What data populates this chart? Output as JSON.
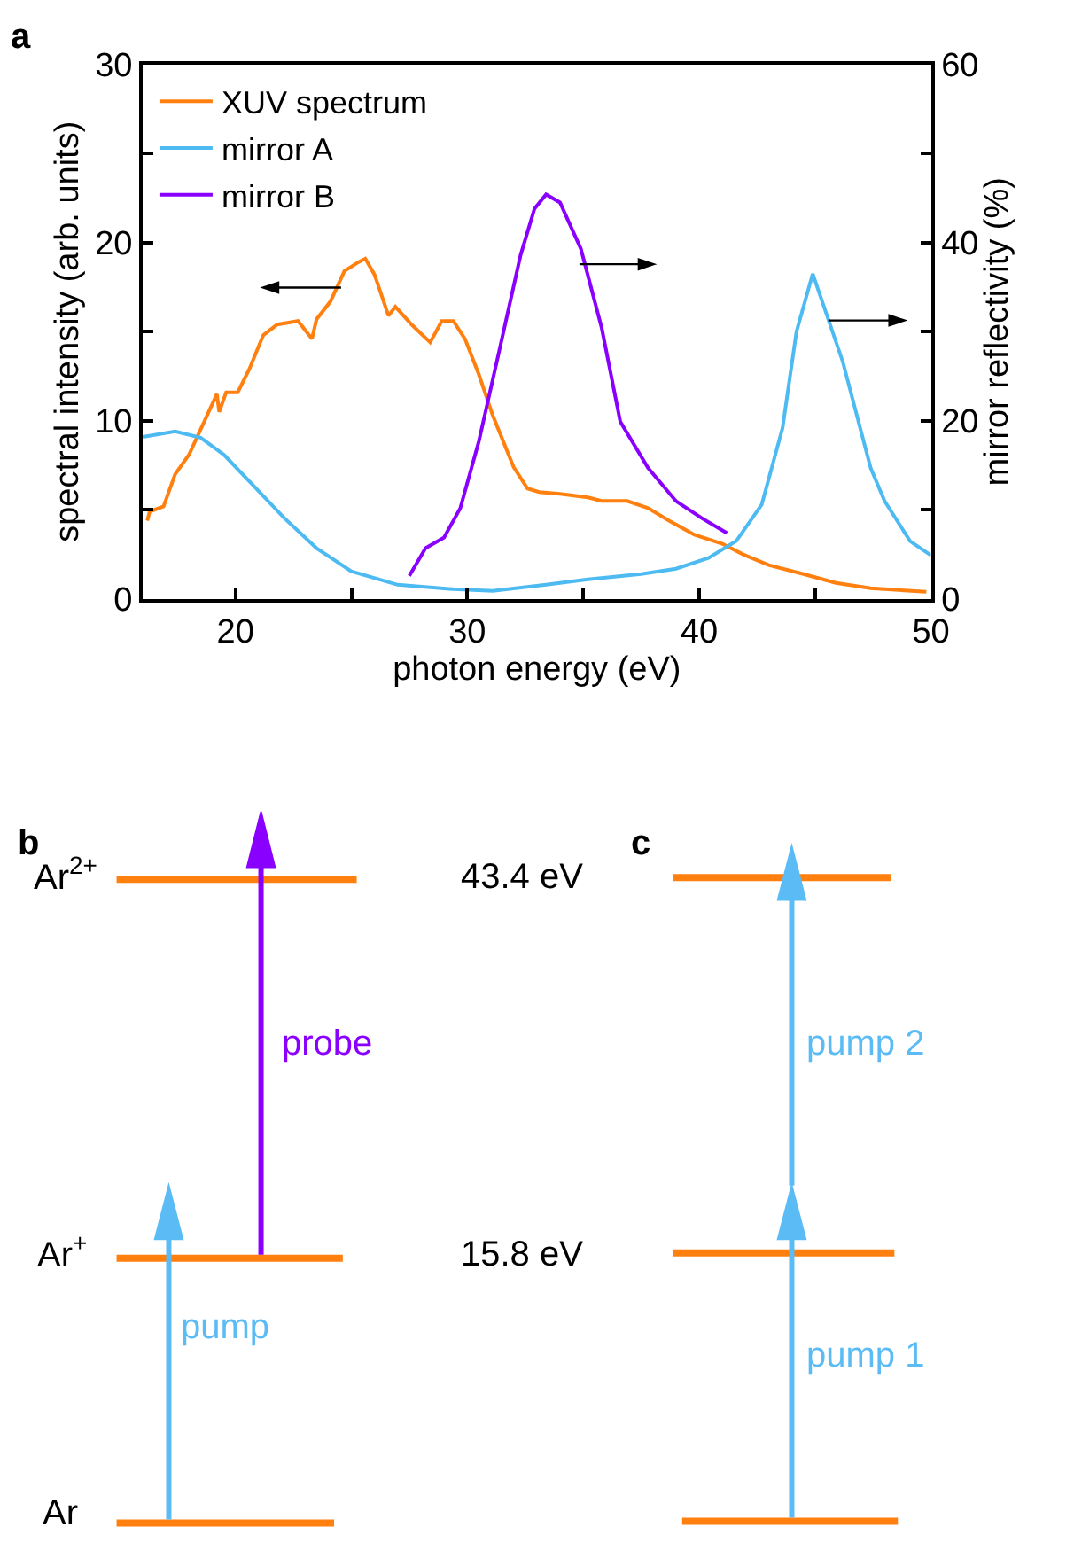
{
  "chart_data": [
    {
      "type": "line",
      "title": "a",
      "xlabel": "photon energy (eV)",
      "ylabel": "spectral intensity (arb. units)",
      "y2label": "mirror reflectivity (%)",
      "xlim": [
        16,
        50
      ],
      "xticks": [
        20,
        {
          "value": 25,
          "label": null
        },
        30,
        {
          "value": 35,
          "label": null
        },
        40,
        {
          "value": 45,
          "label": null
        },
        50
      ],
      "ylim": [
        0,
        30
      ],
      "yticks": [
        0,
        {
          "value": 5,
          "label": null
        },
        10,
        {
          "value": 15,
          "label": null
        },
        20,
        {
          "value": 25,
          "label": null
        },
        30
      ],
      "y2lim": [
        0,
        60
      ],
      "y2ticks": [
        0,
        {
          "value": 10,
          "label": null
        },
        20,
        {
          "value": 30,
          "label": null
        },
        40,
        {
          "value": 50,
          "label": null
        },
        60
      ],
      "legend": "top left",
      "series": [
        {
          "name": "XUV spectrum",
          "color": "#ff7f0f",
          "x": [
            16.2,
            16.3,
            16.9,
            17.4,
            18.0,
            18.6,
            19.2,
            19.3,
            19.6,
            20.1,
            20.6,
            21.2,
            21.8,
            22.7,
            23.3,
            23.5,
            24.1,
            24.7,
            25.3,
            25.6,
            26.0,
            26.6,
            26.9,
            27.6,
            28.4,
            28.9,
            29.4,
            29.9,
            30.5,
            31.1,
            32.0,
            32.6,
            33.1,
            34.0,
            35.2,
            35.8,
            36.9,
            37.8,
            38.7,
            39.8,
            41.0,
            41.9,
            43.0,
            44.5,
            45.9,
            47.4,
            49.8
          ],
          "values": [
            4.4,
            4.9,
            5.2,
            7.0,
            8.1,
            9.8,
            11.5,
            10.5,
            11.6,
            11.6,
            12.9,
            14.8,
            15.4,
            15.6,
            14.6,
            15.7,
            16.7,
            18.4,
            18.9,
            19.1,
            18.2,
            15.9,
            16.4,
            15.4,
            14.4,
            15.6,
            15.6,
            14.6,
            12.6,
            10.3,
            7.4,
            6.2,
            6.0,
            5.9,
            5.7,
            5.5,
            5.5,
            5.1,
            4.4,
            3.6,
            3.1,
            2.5,
            1.9,
            1.4,
            0.9,
            0.6,
            0.4
          ]
        },
        {
          "name": "mirror A",
          "color": "#4dbbf2",
          "axis": "y2",
          "x": [
            16.0,
            17.4,
            18.5,
            19.5,
            20.6,
            22.1,
            23.5,
            25.0,
            27.0,
            29.4,
            31.1,
            33.4,
            35.2,
            37.5,
            39.0,
            40.4,
            41.6,
            42.7,
            43.6,
            44.2,
            44.9,
            46.2,
            47.4,
            48.0,
            49.1,
            50.0
          ],
          "values": [
            18.2,
            18.8,
            18.1,
            16.2,
            13.2,
            9.1,
            5.7,
            3.1,
            1.6,
            1.1,
            0.9,
            1.6,
            2.2,
            2.8,
            3.4,
            4.6,
            6.5,
            10.6,
            19.2,
            30.0,
            36.5,
            26.6,
            14.7,
            11.0,
            6.5,
            4.9
          ]
        },
        {
          "name": "mirror B",
          "color": "#8a00ff",
          "axis": "y2",
          "x": [
            27.5,
            28.2,
            29.0,
            29.7,
            30.5,
            31.4,
            32.3,
            32.9,
            33.4,
            34.0,
            34.9,
            35.8,
            36.6,
            37.8,
            39.0,
            40.1,
            41.2
          ],
          "values": [
            2.6,
            5.7,
            6.9,
            10.2,
            17.7,
            28.1,
            38.6,
            43.8,
            45.4,
            44.5,
            39.3,
            30.4,
            19.9,
            14.7,
            11.0,
            9.1,
            7.4
          ]
        }
      ]
    },
    {
      "type": "other",
      "title": "b",
      "annotations": [
        "Ar$^{2+}$",
        "Ar$^{+}$",
        "Ar",
        "43.4 eV",
        "15.8 eV",
        "probe",
        "pump"
      ]
    },
    {
      "type": "other",
      "title": "c",
      "annotations": [
        "pump 2",
        "pump 1"
      ]
    }
  ]
}
